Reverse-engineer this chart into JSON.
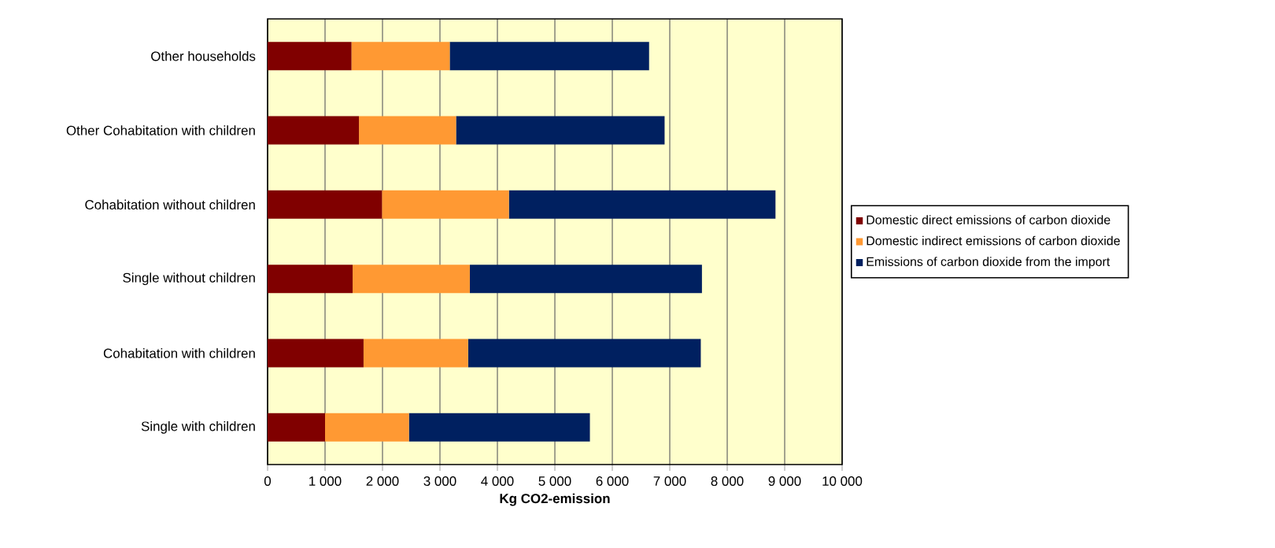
{
  "chart_data": {
    "type": "bar",
    "orientation": "horizontal",
    "stacked": true,
    "xlabel": "Kg CO2-emission",
    "categories": [
      "Other households",
      "Other Cohabitation with children",
      "Cohabitation without children",
      "Single without children",
      "Cohabitation with children",
      "Single with children"
    ],
    "series": [
      {
        "name": "Domestic direct emissions of carbon dioxide",
        "color": "#800000",
        "values": [
          1460,
          1590,
          1990,
          1480,
          1670,
          1000
        ]
      },
      {
        "name": "Domestic indirect emissions of carbon dioxide",
        "color": "#ff9933",
        "values": [
          1710,
          1690,
          2210,
          2040,
          1820,
          1460
        ]
      },
      {
        "name": "Emissions of carbon dioxide from the import",
        "color": "#002060",
        "values": [
          3470,
          3630,
          4640,
          4040,
          4050,
          3150
        ]
      }
    ],
    "xlim": [
      0,
      10000
    ],
    "xticks": [
      0,
      {
        "value": 1000,
        "label": "1 000"
      },
      {
        "value": 2000,
        "label": "2 000"
      },
      {
        "value": 3000,
        "label": "3 000"
      },
      {
        "value": 4000,
        "label": "4 000"
      },
      {
        "value": 5000,
        "label": "5 000"
      },
      {
        "value": 6000,
        "label": "6 000"
      },
      {
        "value": 7000,
        "label": "7 000"
      },
      {
        "value": 8000,
        "label": "8 000"
      },
      {
        "value": 9000,
        "label": "9 000"
      },
      {
        "value": 10000,
        "label": "10 000"
      }
    ],
    "grid": "x",
    "legend": "right"
  }
}
